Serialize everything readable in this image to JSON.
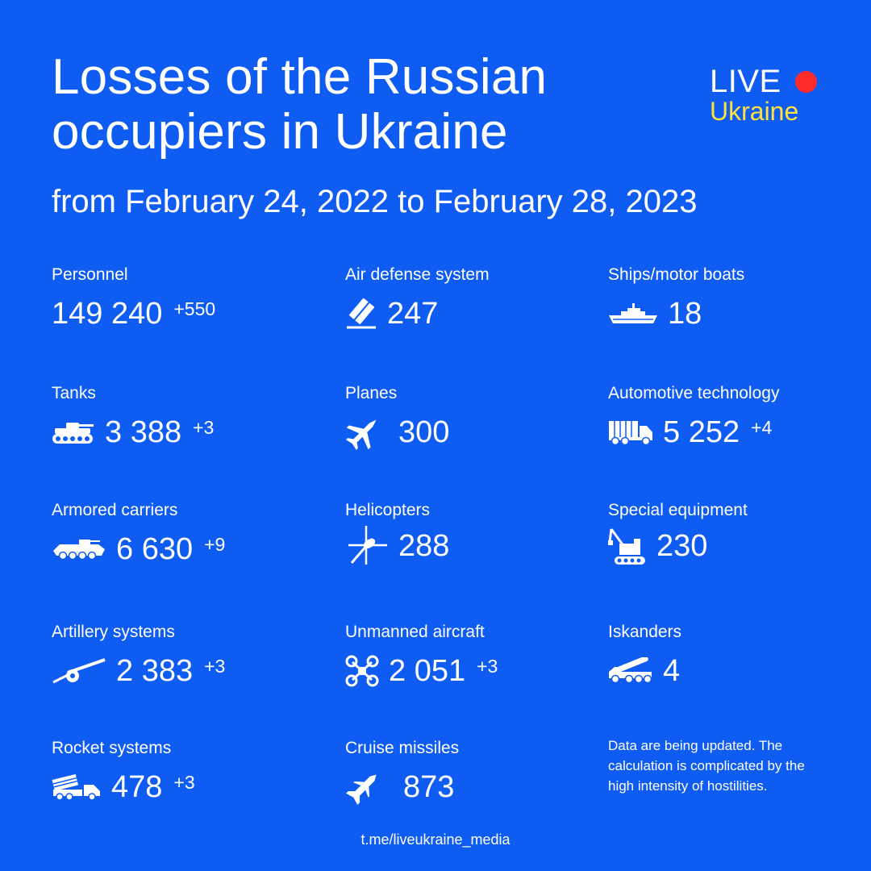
{
  "header": {
    "title": "Losses of the Russian occupiers in Ukraine",
    "subtitle": "from February 24, 2022 to February 28, 2023"
  },
  "logo": {
    "line1": "LIVE",
    "line2": "Ukraine",
    "dot_color": "#ff2a2a",
    "line2_color": "#ffe23b"
  },
  "colors": {
    "background": "#0f5cf2",
    "text": "#ffffff"
  },
  "stats": [
    {
      "label": "Personnel",
      "value": "149 240",
      "delta": "+550",
      "icon": ""
    },
    {
      "label": "Air defense system",
      "value": "247",
      "delta": "",
      "icon": "air-defense-icon"
    },
    {
      "label": "Ships/motor boats",
      "value": "18",
      "delta": "",
      "icon": "ship-icon"
    },
    {
      "label": "Tanks",
      "value": "3 388",
      "delta": "+3",
      "icon": "tank-icon"
    },
    {
      "label": "Planes",
      "value": "300",
      "delta": "",
      "icon": "plane-icon"
    },
    {
      "label": "Automotive technology",
      "value": "5 252",
      "delta": "+4",
      "icon": "truck-icon"
    },
    {
      "label": "Armored carriers",
      "value": "6 630",
      "delta": "+9",
      "icon": "armored-carrier-icon"
    },
    {
      "label": "Helicopters",
      "value": "288",
      "delta": "",
      "icon": "helicopter-icon"
    },
    {
      "label": "Special equipment",
      "value": "230",
      "delta": "",
      "icon": "excavator-icon"
    },
    {
      "label": "Artillery systems",
      "value": "2 383",
      "delta": "+3",
      "icon": "artillery-icon"
    },
    {
      "label": "Unmanned aircraft",
      "value": "2 051",
      "delta": "+3",
      "icon": "drone-icon"
    },
    {
      "label": "Iskanders",
      "value": "4",
      "delta": "",
      "icon": "iskander-icon"
    },
    {
      "label": "Rocket systems",
      "value": "478",
      "delta": "+3",
      "icon": "rocket-launcher-icon"
    },
    {
      "label": "Cruise missiles",
      "value": "873",
      "delta": "",
      "icon": "cruise-missile-icon"
    }
  ],
  "note": "Data are being updated. The calculation is complicated by the high intensity of hostilities.",
  "footer": {
    "link": "t.me/liveukraine_media"
  }
}
